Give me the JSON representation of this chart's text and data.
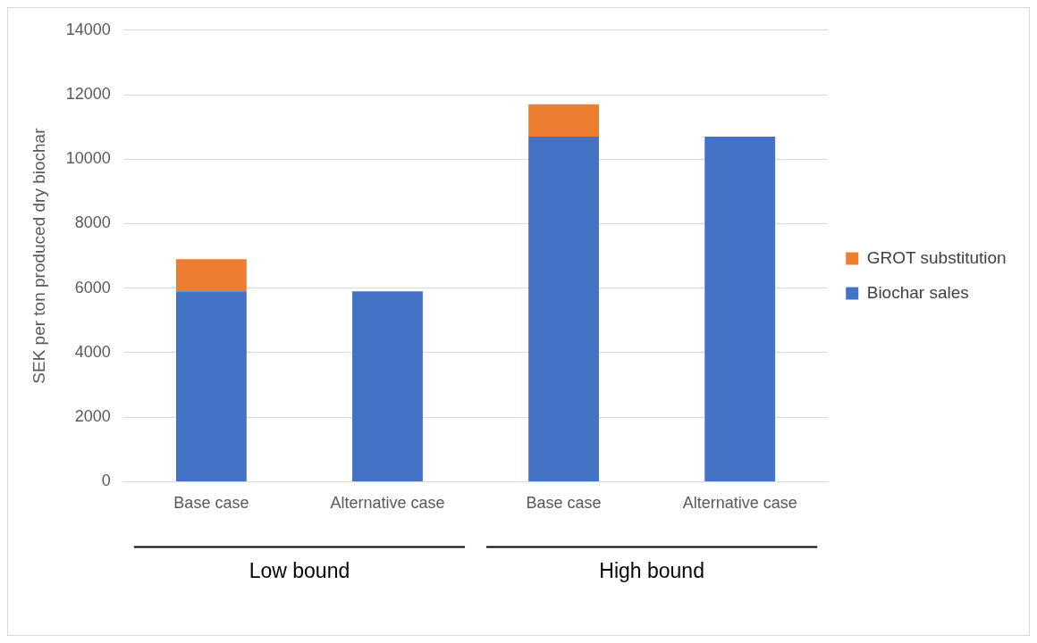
{
  "chart_data": {
    "type": "bar",
    "stacked": true,
    "ylabel": "SEK per ton produced dry biochar",
    "categories": [
      "Base case",
      "Alternative case",
      "Base case",
      "Alternative case"
    ],
    "series": [
      {
        "name": "Biochar sales",
        "color": "#4472c4",
        "values": [
          5900,
          5900,
          10700,
          10700
        ]
      },
      {
        "name": "GROT substitution",
        "color": "#ed7d31",
        "values": [
          1000,
          null,
          1000,
          null
        ]
      }
    ],
    "ylim": [
      0,
      14000
    ],
    "yticks": [
      0,
      2000,
      4000,
      6000,
      8000,
      10000,
      12000,
      14000
    ],
    "grid": "y",
    "legend": "right",
    "annotations": [
      "Low bound",
      "High bound"
    ]
  }
}
